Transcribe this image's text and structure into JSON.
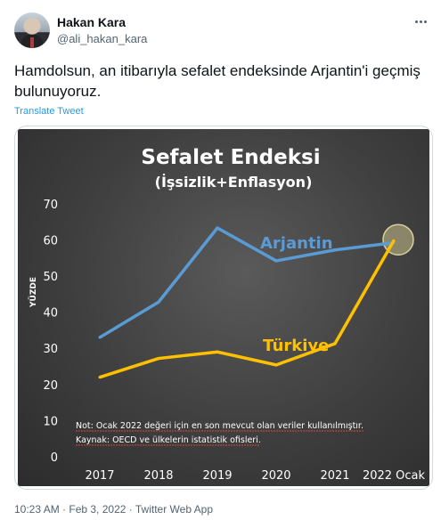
{
  "author": {
    "name": "Hakan Kara",
    "handle": "@ali_hakan_kara"
  },
  "tweet": {
    "text": "Hamdolsun, an itibarıyla sefalet endeksinde Arjantin'i geçmiş bulunuyoruz.",
    "translate_label": "Translate Tweet",
    "timestamp": "10:23 AM · Feb 3, 2022 · Twitter Web App"
  },
  "chart_data": {
    "type": "line",
    "title": "Sefalet Endeksi",
    "subtitle": "(İşsizlik+Enflasyon)",
    "ylabel": "YÜZDE",
    "ylim": [
      0,
      70
    ],
    "yticks": [
      0,
      10,
      20,
      30,
      40,
      50,
      60,
      70
    ],
    "categories": [
      "2017",
      "2018",
      "2019",
      "2020",
      "2021",
      "2022 Ocak"
    ],
    "series": [
      {
        "name": "Arjantin",
        "values": [
          33,
          42.8,
          63.3,
          54.2,
          57.2,
          59.2
        ],
        "color": "#5b9bd5"
      },
      {
        "name": "Türkiye",
        "values": [
          22,
          27.2,
          29,
          25.4,
          31.3,
          59.8
        ],
        "color": "#ffc000"
      }
    ],
    "notes": [
      "Not: Ocak 2022 değeri için en son mevcut olan veriler kullanılmıştır.",
      "Kaynak: OECD ve ülkelerin istatistik ofisleri."
    ],
    "highlight_color": "#c8c08a",
    "grid": false,
    "background": "#3e3e3e"
  }
}
